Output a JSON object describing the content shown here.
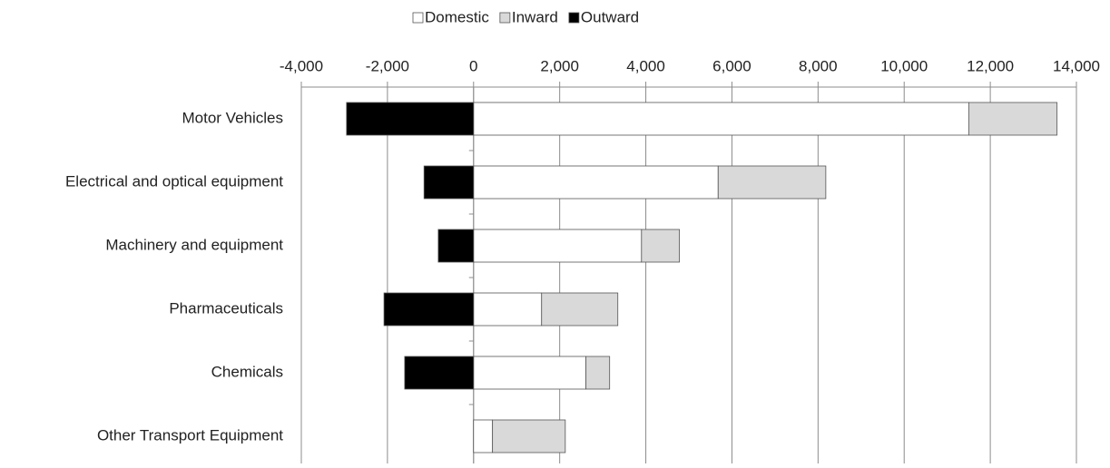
{
  "chart_data": {
    "type": "stacked-bar-horizontal",
    "categories": [
      "Motor Vehicles",
      "Electrical and optical equipment",
      "Machinery and equipment",
      "Pharmaceuticals",
      "Chemicals",
      "Other Transport Equipment"
    ],
    "series": [
      {
        "name": "Domestic",
        "color": "#ffffff",
        "values": [
          11500,
          5680,
          3900,
          1580,
          2610,
          440
        ]
      },
      {
        "name": "Inward",
        "color": "#d9d9d9",
        "values": [
          2050,
          2500,
          880,
          1770,
          550,
          1690
        ]
      },
      {
        "name": "Outward",
        "color": "#000000",
        "values": [
          -2950,
          -1150,
          -820,
          -2080,
          -1600,
          0
        ]
      }
    ],
    "xlim": [
      -4000,
      14000
    ],
    "xticks": [
      {
        "value": -4000,
        "label": "-4,000"
      },
      {
        "value": -2000,
        "label": "-2,000"
      },
      0,
      {
        "value": 2000,
        "label": "2,000"
      },
      {
        "value": 4000,
        "label": "4,000"
      },
      {
        "value": 6000,
        "label": "6,000"
      },
      {
        "value": 8000,
        "label": "8,000"
      },
      {
        "value": 10000,
        "label": "10,000"
      },
      {
        "value": 12000,
        "label": "12,000"
      },
      {
        "value": 14000,
        "label": "14,000"
      }
    ],
    "grid": true,
    "legend": "top"
  }
}
